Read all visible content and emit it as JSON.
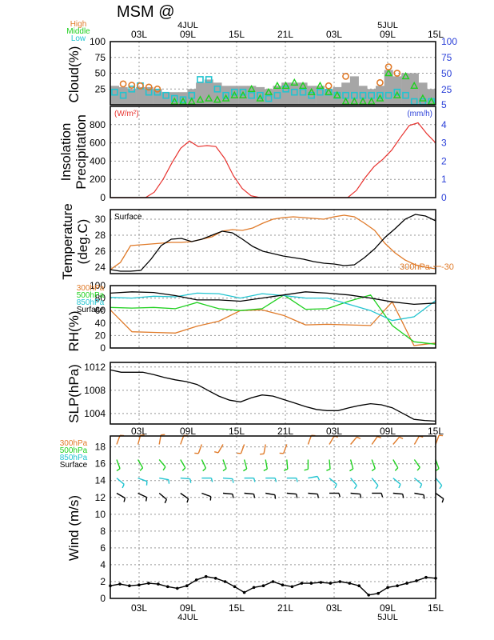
{
  "title": "MSM  @",
  "axis": {
    "top_ticks": [
      "03L",
      "09L",
      "15L",
      "21L",
      "03L",
      "09L",
      "15L"
    ],
    "top_dates": [
      "4JUL",
      "5JUL"
    ],
    "bottom_ticks": [
      "03L",
      "09L",
      "15L",
      "21L",
      "03L",
      "09L",
      "15L"
    ],
    "bottom_dates": [
      "4JUL",
      "5JUL"
    ]
  },
  "colors": {
    "orange": "#e07b2a",
    "green": "#1fd01f",
    "cyan": "#22c4d0",
    "red": "#e8332f",
    "blue": "#2a3fd8",
    "gray": "#a6a6a6",
    "black": "#000000"
  },
  "chart_data": [
    {
      "id": "cloud",
      "type": "bar",
      "ylabel": "Cloud(%)",
      "ylim": [
        0,
        100
      ],
      "yticks_left": [
        "100",
        "75",
        "50",
        "25"
      ],
      "yticks_right": [
        "100",
        "75",
        "50",
        "25",
        "5"
      ],
      "legend": [
        "High",
        "Middle",
        "Low"
      ],
      "x": [
        0,
        1,
        2,
        3,
        4,
        5,
        6,
        7,
        8,
        9,
        10,
        11,
        12,
        13,
        14,
        15,
        16,
        17,
        18,
        19,
        20,
        21,
        22,
        23,
        24,
        25,
        26,
        27,
        28,
        29,
        30,
        31,
        32,
        33,
        34,
        35,
        36,
        37
      ],
      "series": [
        {
          "name": "total",
          "values": [
            30,
            28,
            25,
            28,
            28,
            25,
            20,
            20,
            20,
            25,
            35,
            40,
            35,
            30,
            30,
            30,
            30,
            28,
            25,
            30,
            35,
            35,
            35,
            30,
            30,
            25,
            28,
            35,
            45,
            30,
            25,
            30,
            55,
            45,
            50,
            50,
            35,
            25
          ]
        },
        {
          "name": "High",
          "values": [
            null,
            33,
            31,
            30,
            28,
            25,
            null,
            null,
            null,
            null,
            null,
            null,
            null,
            null,
            null,
            null,
            null,
            null,
            null,
            null,
            null,
            null,
            null,
            null,
            null,
            30,
            null,
            45,
            null,
            null,
            null,
            35,
            60,
            50,
            null,
            null,
            null,
            null
          ]
        },
        {
          "name": "Middle",
          "values": [
            null,
            null,
            null,
            null,
            null,
            null,
            null,
            5,
            5,
            5,
            8,
            10,
            8,
            10,
            15,
            15,
            25,
            10,
            20,
            30,
            30,
            35,
            30,
            20,
            30,
            20,
            15,
            5,
            5,
            5,
            5,
            10,
            50,
            15,
            45,
            30,
            10,
            5
          ]
        },
        {
          "name": "Low",
          "values": [
            20,
            15,
            25,
            30,
            20,
            20,
            15,
            10,
            8,
            15,
            40,
            40,
            25,
            15,
            20,
            20,
            15,
            15,
            10,
            15,
            25,
            20,
            20,
            15,
            20,
            20,
            15,
            15,
            15,
            15,
            15,
            15,
            15,
            20,
            15,
            5,
            5,
            5
          ]
        }
      ]
    },
    {
      "id": "insolation",
      "type": "line",
      "ylabel": "Insolation Precipitation",
      "unit_left": "(W/m²)",
      "unit_right": "(mm/h)",
      "ylim": [
        0,
        1000
      ],
      "yticks_left": [
        "800",
        "600",
        "400",
        "200",
        "0"
      ],
      "yticks_right": [
        "4",
        "3",
        "2",
        "1",
        "0"
      ],
      "series": [
        {
          "name": "insolation",
          "values": [
            0,
            0,
            0,
            0,
            0,
            60,
            200,
            380,
            540,
            620,
            560,
            570,
            560,
            430,
            240,
            100,
            20,
            0,
            0,
            0,
            0,
            0,
            0,
            0,
            0,
            0,
            0,
            0,
            80,
            220,
            340,
            420,
            520,
            660,
            790,
            820,
            700,
            600
          ]
        }
      ]
    },
    {
      "id": "temperature",
      "type": "line",
      "ylabel": "Temperature (deg.C)",
      "label_surface": "Surface",
      "label_300": "300hPa",
      "label_300_value": "-30",
      "ylim": [
        23.2,
        31.2
      ],
      "yticks": [
        "30",
        "28",
        "26",
        "24"
      ],
      "series": [
        {
          "name": "Surface",
          "values": [
            23.7,
            23.5,
            23.5,
            23.6,
            25.0,
            26.7,
            27.5,
            27.6,
            27.2,
            27.5,
            28.0,
            28.5,
            28.3,
            27.5,
            26.6,
            26.0,
            25.7,
            25.4,
            25.2,
            25.0,
            24.7,
            24.5,
            24.4,
            24.2,
            24.3,
            25.2,
            26.3,
            27.7,
            28.8,
            30.0,
            30.6,
            30.4,
            29.8
          ]
        },
        {
          "name": "300hPa",
          "values": [
            23.7,
            24.6,
            26.7,
            26.8,
            26.9,
            27.0,
            27.1,
            27.1,
            27.2,
            27.5,
            27.8,
            28.5,
            28.7,
            28.6,
            28.9,
            29.5,
            30.0,
            30.2,
            30.3,
            30.2,
            30.1,
            30.0,
            30.3,
            30.5,
            30.3,
            29.5,
            28.6,
            27.0,
            25.8,
            24.9,
            24.3,
            24.0,
            23.8
          ]
        }
      ]
    },
    {
      "id": "rh",
      "type": "line",
      "ylabel": "RH(%)",
      "legend": [
        "300hPa",
        "500hPa",
        "850hPa",
        "Surface"
      ],
      "ylim": [
        0,
        100
      ],
      "yticks": [
        "100",
        "80",
        "60",
        "40",
        "20",
        "0"
      ],
      "series": [
        {
          "name": "300hPa",
          "values": [
            61,
            26,
            25,
            24,
            35,
            43,
            60,
            61,
            52,
            37,
            38,
            37,
            36,
            74,
            4,
            8
          ]
        },
        {
          "name": "500hPa",
          "values": [
            65,
            64,
            65,
            63,
            73,
            63,
            60,
            63,
            85,
            62,
            63,
            75,
            85,
            36,
            10,
            6
          ]
        },
        {
          "name": "850hPa",
          "values": [
            81,
            80,
            83,
            82,
            88,
            87,
            80,
            87,
            84,
            80,
            80,
            70,
            60,
            44,
            50,
            76
          ]
        },
        {
          "name": "Surface",
          "values": [
            88,
            90,
            89,
            84,
            77,
            77,
            75,
            80,
            85,
            90,
            88,
            85,
            80,
            74,
            70,
            72
          ]
        }
      ]
    },
    {
      "id": "slp",
      "type": "line",
      "ylabel": "SLP(hPa)",
      "ylim": [
        1002.2,
        1012.8
      ],
      "yticks": [
        "1012",
        "1008",
        "1004"
      ],
      "series": [
        {
          "name": "SLP",
          "values": [
            1011.5,
            1011.1,
            1011.1,
            1011.1,
            1010.7,
            1010.2,
            1009.8,
            1009.5,
            1009.0,
            1008.0,
            1007.0,
            1006.3,
            1006.0,
            1006.7,
            1007.2,
            1007.0,
            1006.4,
            1005.8,
            1005.2,
            1004.7,
            1004.5,
            1004.5,
            1005.0,
            1005.4,
            1005.7,
            1005.5,
            1005.0,
            1004.0,
            1003.0,
            1002.8,
            1002.7
          ]
        }
      ]
    },
    {
      "id": "wind",
      "type": "line",
      "ylabel": "Wind (m/s)",
      "legend": [
        "300hPa",
        "500hPa",
        "850hPa",
        "Surface"
      ],
      "ylim": [
        0,
        19.3
      ],
      "yticks": [
        "18",
        "16",
        "14",
        "12",
        "10",
        "8",
        "6",
        "4",
        "2",
        "0"
      ],
      "series": [
        {
          "name": "Surface",
          "values": [
            1.5,
            1.7,
            1.5,
            1.6,
            1.8,
            1.7,
            1.4,
            1.2,
            1.5,
            2.2,
            2.6,
            2.4,
            2.0,
            1.4,
            0.7,
            1.3,
            1.5,
            2.0,
            1.6,
            1.4,
            1.8,
            1.8,
            1.9,
            1.8,
            2.0,
            1.8,
            1.5,
            0.4,
            0.6,
            1.3,
            1.5,
            1.8,
            2.1,
            2.5,
            2.4
          ]
        }
      ]
    }
  ]
}
